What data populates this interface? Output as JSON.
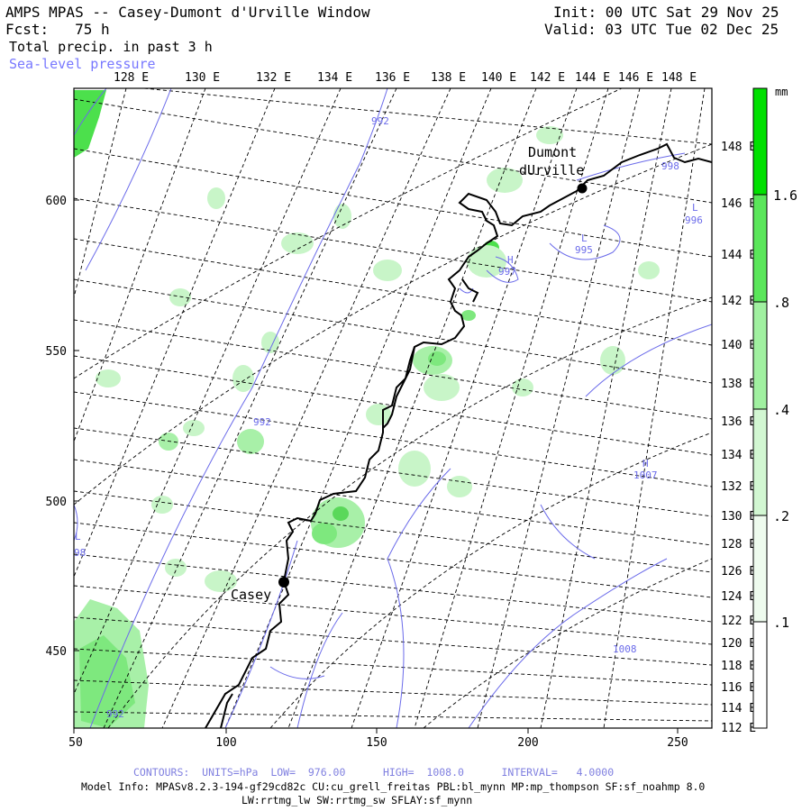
{
  "header": {
    "title": "AMPS MPAS -- Casey-Dumont d'Urville Window",
    "init": "Init: 00 UTC Sat 29 Nov 25",
    "forecast": "Fcst:   75 h",
    "valid": "Valid: 03 UTC Tue 02 Dec 25",
    "field1": "Total precip. in past 3 h",
    "field2": "Sea-level pressure"
  },
  "top_axis_labels": [
    "128 E",
    "130 E",
    "132 E",
    "134 E",
    "136 E",
    "138 E",
    "140 E",
    "142 E",
    "144 E",
    "146 E",
    "148 E"
  ],
  "right_axis_labels": [
    "148 E",
    "146 E",
    "144 E",
    "142 E",
    "140 E",
    "138 E",
    "136 E",
    "134 E",
    "132 E",
    "130 E",
    "128 E",
    "126 E",
    "124 E",
    "122 E",
    "120 E",
    "118 E",
    "116 E",
    "114 E",
    "112 E"
  ],
  "left_axis_labels": [
    "600",
    "550",
    "500",
    "450"
  ],
  "bottom_axis_labels": [
    "50",
    "100",
    "150",
    "200",
    "250"
  ],
  "stations": [
    {
      "name": "Dumont\ndUrville",
      "label1": "Dumont",
      "label2": "dUrville"
    },
    {
      "name": "Casey",
      "label1": "Casey"
    }
  ],
  "pressure_labels": [
    "992",
    "992",
    "992",
    "998",
    "996",
    "995",
    "997",
    "1007",
    "1008",
    "L",
    "L",
    "H",
    "H",
    "L",
    "98"
  ],
  "colorbar": {
    "unit": "mm",
    "labels": [
      "1.6",
      ".8",
      ".4",
      ".2",
      ".1"
    ],
    "colors": [
      "#00e000",
      "#5ae65a",
      "#a0f0a0",
      "#d2f7d2",
      "#ffffff"
    ]
  },
  "footer": {
    "contours": "CONTOURS:  UNITS=hPa  LOW=  976.00      HIGH=  1008.0      INTERVAL=   4.0000",
    "model_info": "Model Info: MPASv8.2.3-194-gf29cd82c CU:cu_grell_freitas PBL:bl_mynn MP:mp_thompson SF:sf_noahmp 8.0",
    "model_info2": "LW:rrtmg_lw SW:rrtmg_sw SFLAY:sf_mynn"
  },
  "colors": {
    "contour": "#6b6bea",
    "coast": "#000000",
    "grid": "#000000"
  }
}
